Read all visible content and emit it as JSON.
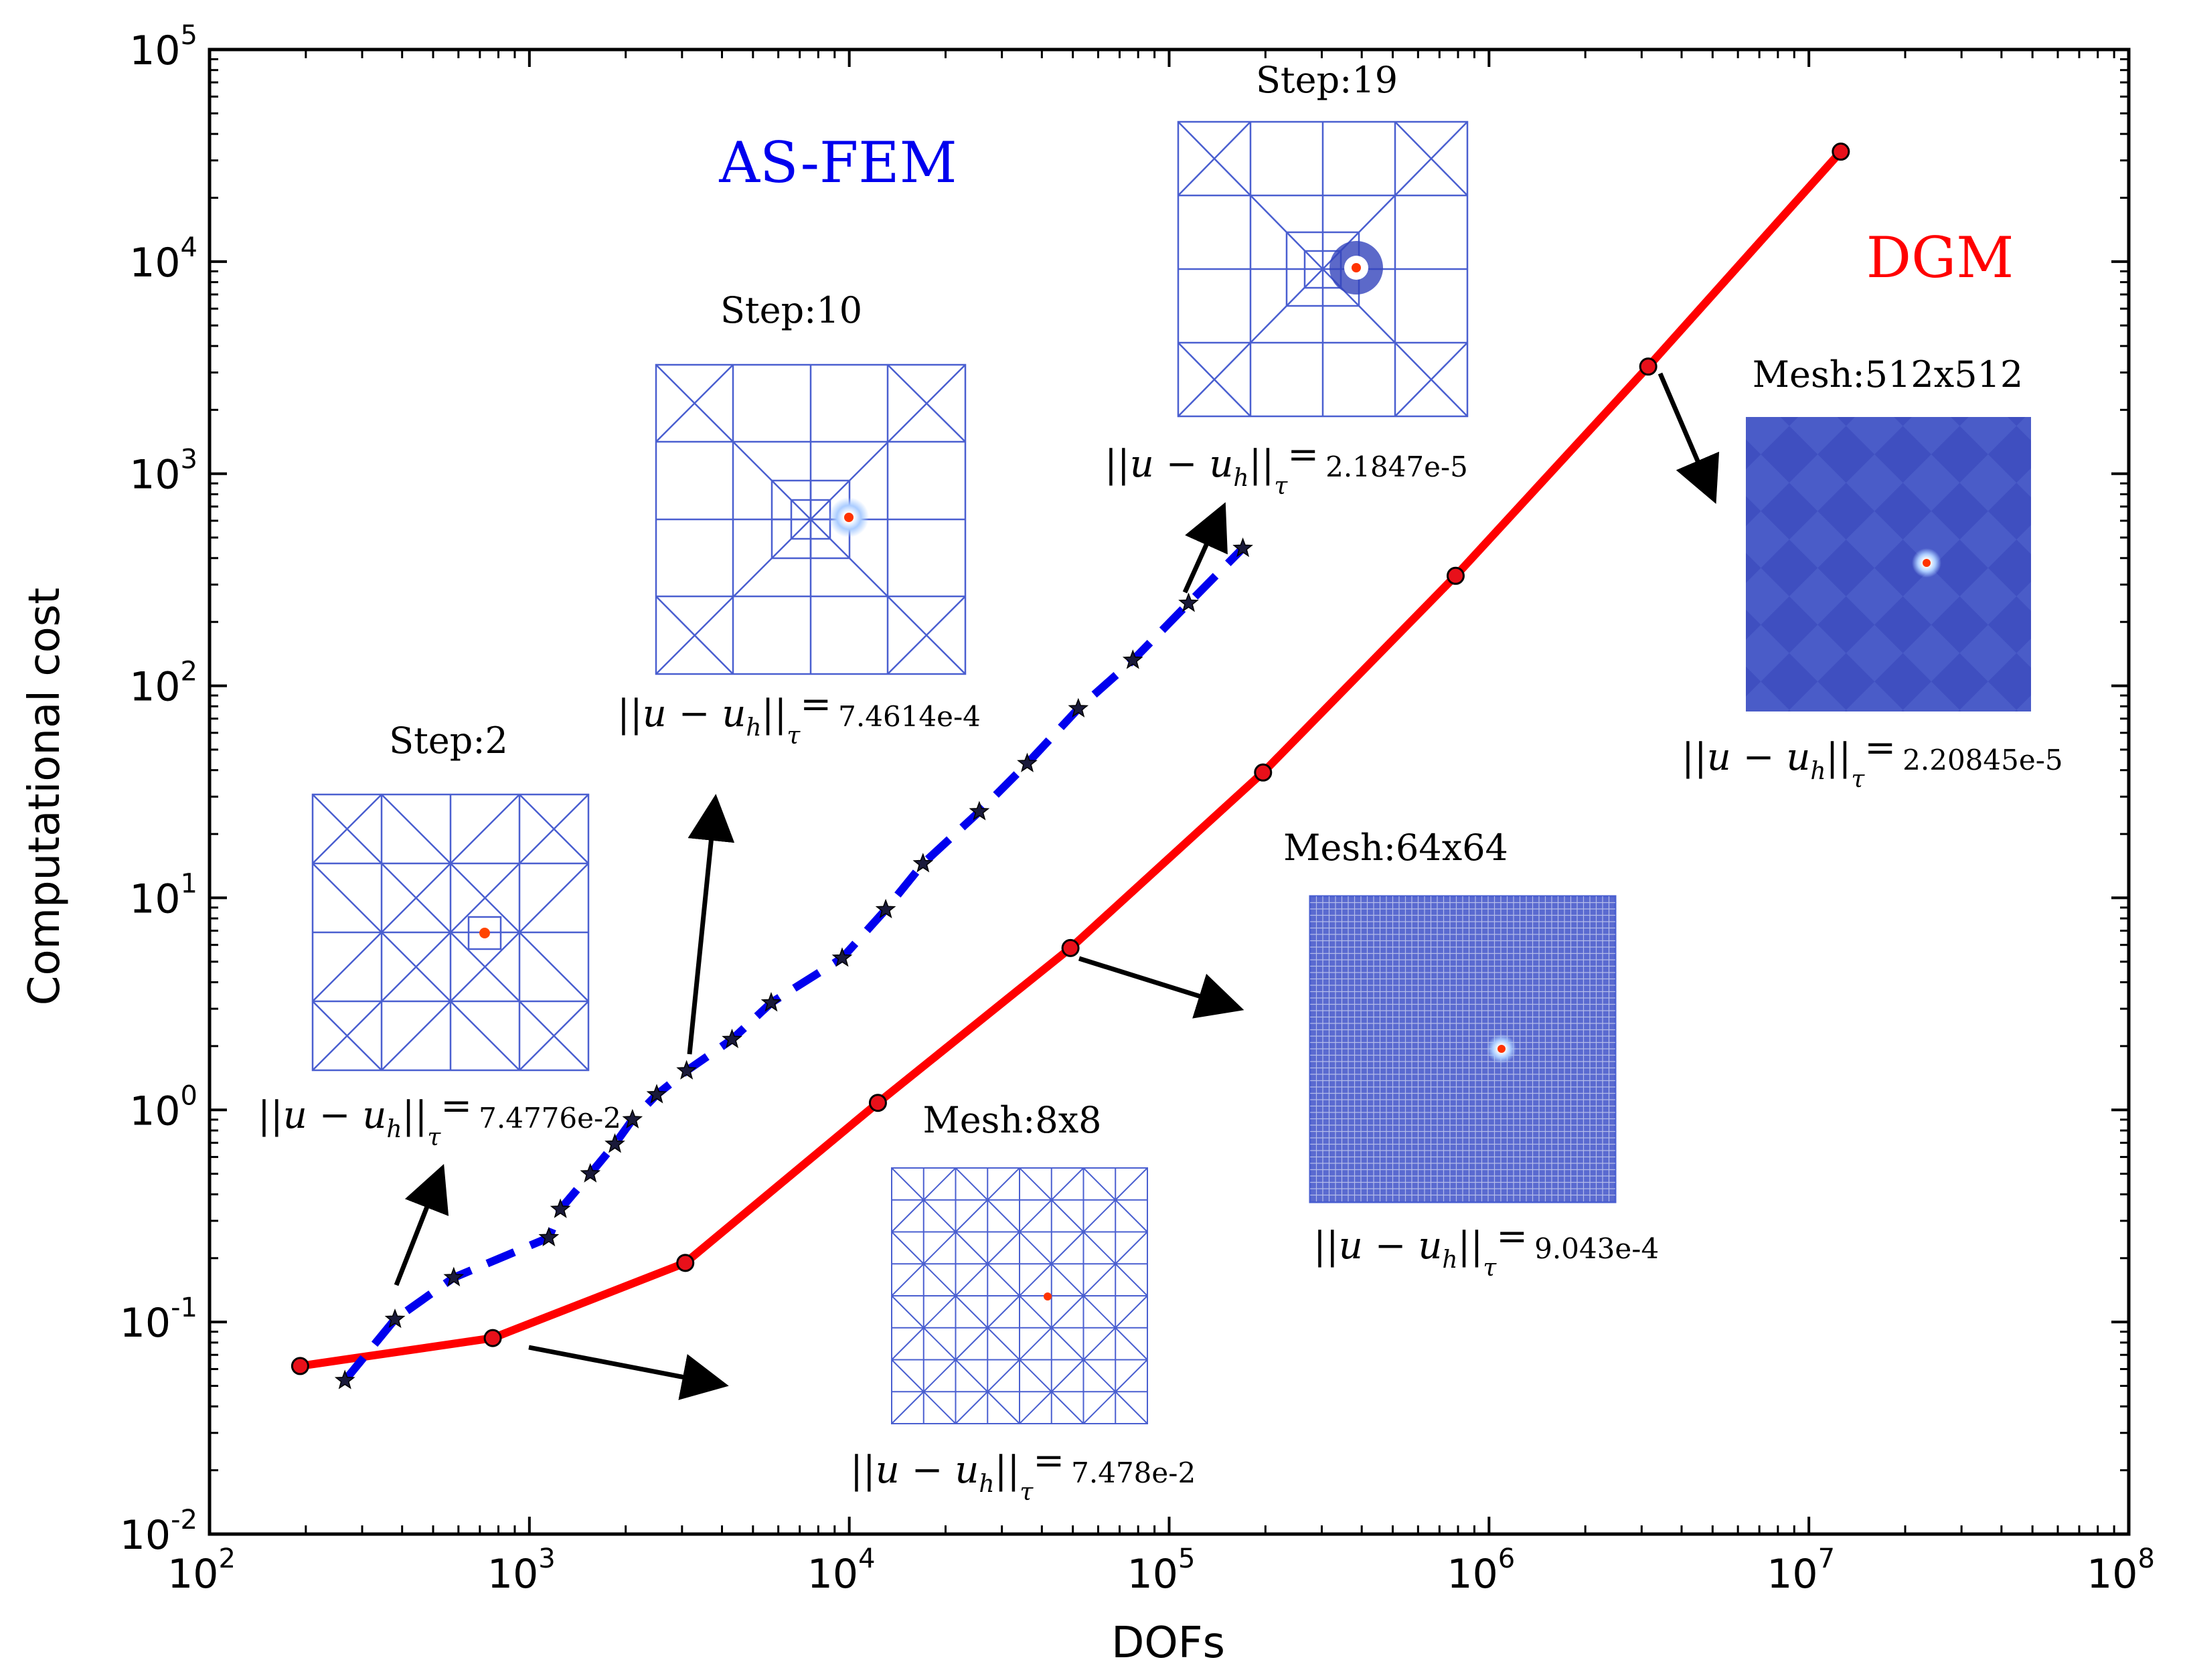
{
  "chart_data": {
    "type": "line",
    "title": "",
    "xlabel": "DOFs",
    "ylabel": "Computational cost",
    "xscale": "log",
    "yscale": "log",
    "xlim": [
      100,
      100000000
    ],
    "ylim": [
      0.01,
      100000
    ],
    "x_ticks": [
      {
        "base": "10",
        "exp": "2",
        "value": 100
      },
      {
        "base": "10",
        "exp": "3",
        "value": 1000
      },
      {
        "base": "10",
        "exp": "4",
        "value": 10000
      },
      {
        "base": "10",
        "exp": "5",
        "value": 100000
      },
      {
        "base": "10",
        "exp": "6",
        "value": 1000000
      },
      {
        "base": "10",
        "exp": "7",
        "value": 10000000
      },
      {
        "base": "10",
        "exp": "8",
        "value": 100000000
      }
    ],
    "y_ticks": [
      {
        "base": "10",
        "exp": "-2",
        "value": 0.01
      },
      {
        "base": "10",
        "exp": "-1",
        "value": 0.1
      },
      {
        "base": "10",
        "exp": "0",
        "value": 1
      },
      {
        "base": "10",
        "exp": "1",
        "value": 10
      },
      {
        "base": "10",
        "exp": "2",
        "value": 100
      },
      {
        "base": "10",
        "exp": "3",
        "value": 1000
      },
      {
        "base": "10",
        "exp": "4",
        "value": 10000
      },
      {
        "base": "10",
        "exp": "5",
        "value": 100000
      }
    ],
    "series": [
      {
        "name": "AS-FEM",
        "color": "#0000ee",
        "style": "dashed",
        "marker": "star",
        "x": [
          265,
          380,
          580,
          1150,
          1250,
          1550,
          1850,
          2100,
          2500,
          3100,
          4300,
          5700,
          9500,
          13000,
          17000,
          25500,
          36000,
          52000,
          77000,
          115000,
          170000
        ],
        "y": [
          0.053,
          0.103,
          0.162,
          0.25,
          0.34,
          0.5,
          0.69,
          0.9,
          1.18,
          1.53,
          2.15,
          3.2,
          5.2,
          8.8,
          14.5,
          25.5,
          43,
          78,
          132,
          245,
          445
        ]
      },
      {
        "name": "DGM",
        "color": "#ff0000",
        "style": "solid",
        "marker": "circle",
        "x": [
          192,
          768,
          3072,
          12288,
          49152,
          196608,
          786432,
          3145728,
          12582912
        ],
        "y": [
          0.062,
          0.084,
          0.19,
          1.08,
          5.8,
          39,
          330,
          3200,
          33000
        ]
      }
    ],
    "annotations": {
      "asfem_label": "AS-FEM",
      "dgm_label": "DGM"
    }
  },
  "insets": [
    {
      "id": "step2",
      "title": "Step:2",
      "norm_value": "7.4776e-2"
    },
    {
      "id": "step10",
      "title": "Step:10",
      "norm_value": "7.4614e-4"
    },
    {
      "id": "step19",
      "title": "Step:19",
      "norm_value": "2.1847e-5"
    },
    {
      "id": "mesh8",
      "title": "Mesh:8x8",
      "norm_value": "7.478e-2"
    },
    {
      "id": "mesh64",
      "title": "Mesh:64x64",
      "norm_value": "9.043e-4"
    },
    {
      "id": "mesh512",
      "title": "Mesh:512x512",
      "norm_value": "2.20845e-5"
    }
  ],
  "norm_text": {
    "main": "||u − u",
    "sub_h": "h",
    "close": "||",
    "sub_tau": "τ",
    "eq": "="
  },
  "colors": {
    "mesh_line": "#4a5fd0",
    "mesh_fill_dark": "#3f51c4",
    "mesh_fill_light": "#5566cc",
    "arrow": "#000000"
  }
}
